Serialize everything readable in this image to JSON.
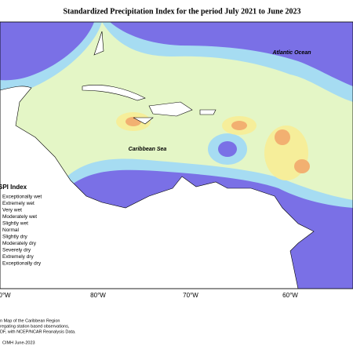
{
  "title": "Standardized Precipitation Index for the period July 2021 to June 2023",
  "map": {
    "labels": [
      "Atlantic Ocean",
      "Caribbean Sea"
    ],
    "longitude_labels": [
      "0°W",
      "80°W",
      "70°W",
      "60°W"
    ]
  },
  "legend": {
    "title": "SPI Index",
    "items": [
      "Exceptionally wet",
      "Extremely wet",
      "Very wet",
      "Moderately wet",
      "Slightly wet",
      "Normal",
      "Slightly dry",
      "Moderately dry",
      "Severely dry",
      "Extremely dry",
      "Exceptionally dry"
    ]
  },
  "footer": {
    "lines": [
      "n Map of the Caribbean Region",
      "regating station based observations,",
      "DF, with NCEP/NCAR Reanalysis Data."
    ],
    "credit": "CIMH June-2023"
  }
}
